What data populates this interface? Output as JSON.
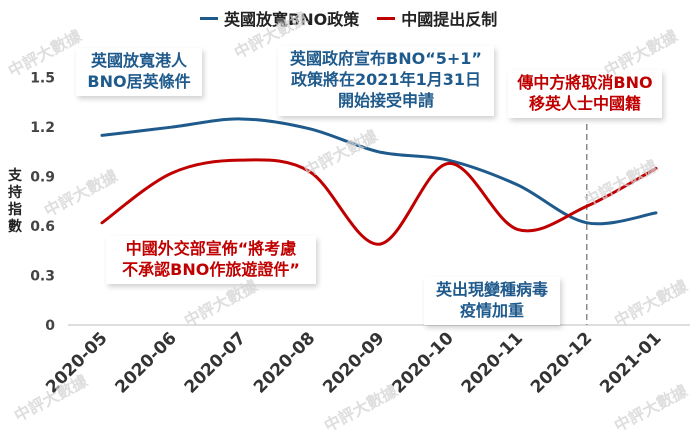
{
  "chart_data": {
    "type": "line",
    "categories": [
      "2020-05",
      "2020-06",
      "2020-07",
      "2020-08",
      "2020-09",
      "2020-10",
      "2020-11",
      "2020-12",
      "2021-01"
    ],
    "series": [
      {
        "name": "英國放寬BNO政策",
        "values": [
          1.15,
          1.2,
          1.25,
          1.19,
          1.05,
          1.0,
          0.85,
          0.62,
          0.68
        ],
        "color": "#1f5a8c"
      },
      {
        "name": "中國提出反制",
        "values": [
          0.62,
          0.92,
          1.0,
          0.93,
          0.49,
          0.98,
          0.58,
          0.72,
          0.95
        ],
        "color": "#c00000"
      }
    ],
    "ylabel": "支持指數",
    "y_ticks": [
      "0",
      "0.3",
      "0.6",
      "0.9",
      "1.2",
      "1.5"
    ],
    "ylim": [
      0,
      1.65
    ],
    "grid": false,
    "legend_position": "top",
    "event_marker_category": "2020-12",
    "annotations": {
      "a1": [
        "英國放寬港人",
        "BNO居英條件"
      ],
      "a2": [
        "英國政府宣布BNO“5+1”",
        "政策將在2021年1月31日",
        "開始接受申請"
      ],
      "a3": [
        "傳中方將取消BNO",
        "移英人士中國籍"
      ],
      "a4": [
        "中國外交部宣佈“將考慮",
        "不承認BNO作旅遊證件”"
      ],
      "a5": [
        "英出現變種病毒",
        "疫情加重"
      ]
    }
  },
  "watermark": "中評大數據"
}
